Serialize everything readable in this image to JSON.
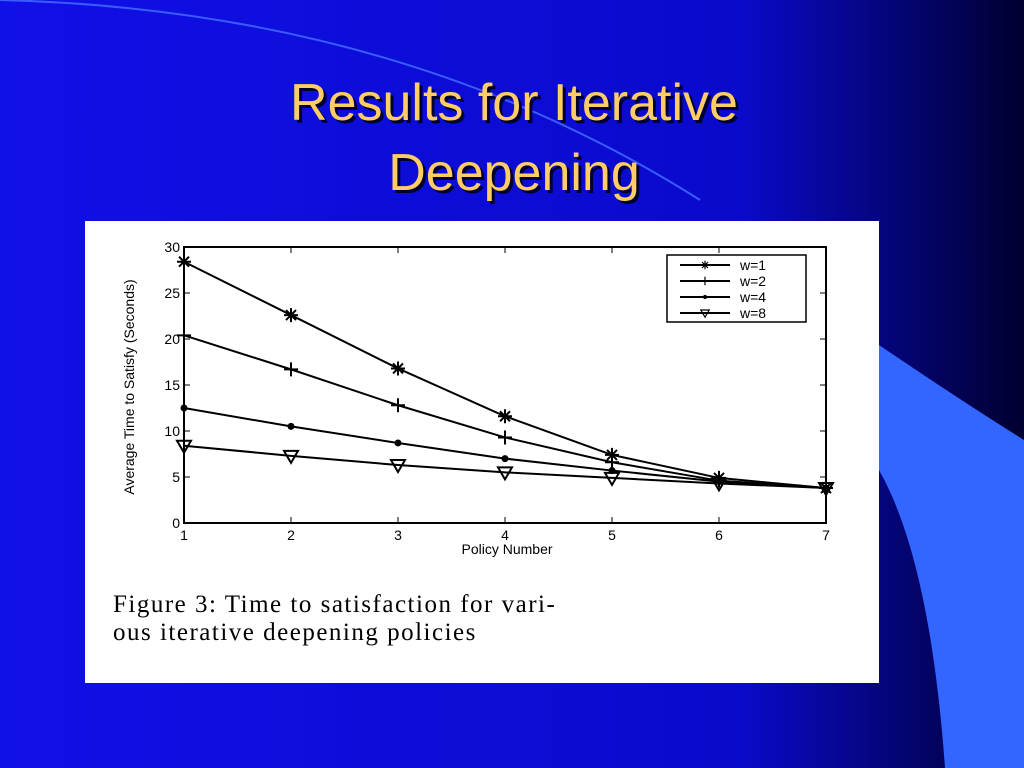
{
  "slide_title": [
    "Results for Iterative",
    "Deepening"
  ],
  "chart_data": {
    "type": "line",
    "xlabel": "Policy Number",
    "ylabel": "Average Time to Satisfy (Seconds)",
    "caption": [
      "Figure 3: Time to satisfaction for vari-",
      "ous iterative deepening policies"
    ],
    "x": [
      1,
      2,
      3,
      4,
      5,
      6,
      7
    ],
    "xlim": [
      1,
      7
    ],
    "xticks": [
      1,
      2,
      3,
      4,
      5,
      6,
      7
    ],
    "ylim": [
      0,
      30
    ],
    "yticks": [
      0,
      5,
      10,
      15,
      20,
      25,
      30
    ],
    "legend": "upper right",
    "series": [
      {
        "name": "w=1",
        "color": "#000000",
        "marker": "asterisk",
        "values": [
          28.4,
          22.6,
          16.8,
          11.6,
          7.4,
          4.9,
          3.8
        ]
      },
      {
        "name": "w=2",
        "color": "#000000",
        "marker": "plus",
        "values": [
          20.4,
          16.7,
          12.8,
          9.3,
          6.6,
          4.6,
          3.8
        ]
      },
      {
        "name": "w=4",
        "color": "#000000",
        "marker": "dot",
        "values": [
          12.5,
          10.5,
          8.7,
          7.0,
          5.7,
          4.5,
          3.8
        ]
      },
      {
        "name": "w=8",
        "color": "#000000",
        "marker": "triangle",
        "values": [
          8.4,
          7.3,
          6.3,
          5.5,
          4.9,
          4.3,
          3.8
        ]
      }
    ]
  }
}
